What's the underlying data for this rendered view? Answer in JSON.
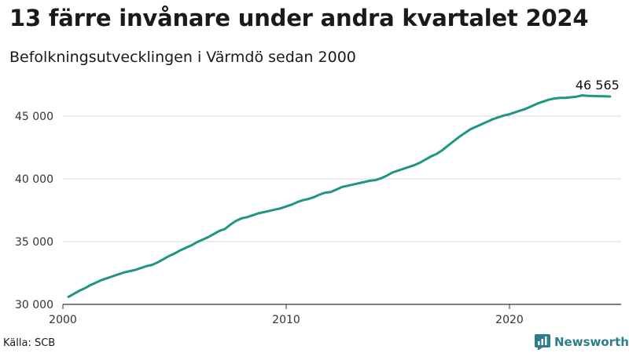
{
  "title": "13 färre invånare under andra kvartalet 2024",
  "subtitle": "Befolkningsutvecklingen i Värmdö sedan 2000",
  "source": "Källa: SCB",
  "brand": {
    "name": "Newsworthy",
    "icon": "newsworthy-logo-icon",
    "color": "#2e7d8a"
  },
  "colors": {
    "line": "#1e9683",
    "grid": "#d9d9d9",
    "axis": "#333333"
  },
  "chart_data": {
    "type": "line",
    "title": "13 färre invånare under andra kvartalet 2024",
    "subtitle": "Befolkningsutvecklingen i Värmdö sedan 2000",
    "xlabel": "",
    "ylabel": "",
    "xlim": [
      2000,
      2025
    ],
    "ylim": [
      30000,
      48000
    ],
    "x_ticks": [
      2000,
      2010,
      2020
    ],
    "x_tick_labels": [
      "2000",
      "2010",
      "2020"
    ],
    "y_ticks": [
      30000,
      35000,
      40000,
      45000
    ],
    "y_tick_labels": [
      "30 000",
      "35 000",
      "40 000",
      "45 000"
    ],
    "grid": true,
    "end_label": "46 565",
    "series": [
      {
        "x": [
          2000.25,
          2000.5,
          2000.75,
          2001.0,
          2001.25,
          2001.5,
          2001.75,
          2002.0,
          2002.25,
          2002.5,
          2002.75,
          2003.0,
          2003.25,
          2003.5,
          2003.75,
          2004.0,
          2004.25,
          2004.5,
          2004.75,
          2005.0,
          2005.25,
          2005.5,
          2005.75,
          2006.0,
          2006.25,
          2006.5,
          2006.75,
          2007.0,
          2007.25,
          2007.5,
          2007.75,
          2008.0,
          2008.25,
          2008.5,
          2008.75,
          2009.0,
          2009.25,
          2009.5,
          2009.75,
          2010.0,
          2010.25,
          2010.5,
          2010.75,
          2011.0,
          2011.25,
          2011.5,
          2011.75,
          2012.0,
          2012.25,
          2012.5,
          2012.75,
          2013.0,
          2013.25,
          2013.5,
          2013.75,
          2014.0,
          2014.25,
          2014.5,
          2014.75,
          2015.0,
          2015.25,
          2015.5,
          2015.75,
          2016.0,
          2016.25,
          2016.5,
          2016.75,
          2017.0,
          2017.25,
          2017.5,
          2017.75,
          2018.0,
          2018.25,
          2018.5,
          2018.75,
          2019.0,
          2019.25,
          2019.5,
          2019.75,
          2020.0,
          2020.25,
          2020.5,
          2020.75,
          2021.0,
          2021.25,
          2021.5,
          2021.75,
          2022.0,
          2022.25,
          2022.5,
          2022.75,
          2023.0,
          2023.25,
          2023.5,
          2023.75,
          2024.0,
          2024.25,
          2024.5
        ],
        "values": [
          30600,
          30850,
          31100,
          31300,
          31550,
          31750,
          31950,
          32100,
          32250,
          32400,
          32550,
          32650,
          32750,
          32900,
          33050,
          33150,
          33350,
          33600,
          33850,
          34050,
          34300,
          34500,
          34700,
          34950,
          35150,
          35350,
          35600,
          35850,
          36000,
          36350,
          36650,
          36850,
          36950,
          37100,
          37250,
          37350,
          37450,
          37550,
          37650,
          37800,
          37950,
          38150,
          38300,
          38400,
          38550,
          38750,
          38900,
          38950,
          39150,
          39350,
          39450,
          39550,
          39650,
          39750,
          39850,
          39900,
          40050,
          40250,
          40500,
          40650,
          40800,
          40950,
          41100,
          41300,
          41550,
          41800,
          42000,
          42300,
          42650,
          43000,
          43350,
          43650,
          43950,
          44150,
          44350,
          44550,
          44750,
          44900,
          45050,
          45150,
          45300,
          45450,
          45600,
          45800,
          46000,
          46150,
          46300,
          46400,
          46450,
          46450,
          46500,
          46550,
          46650,
          46620,
          46600,
          46590,
          46578,
          46565
        ]
      }
    ]
  }
}
